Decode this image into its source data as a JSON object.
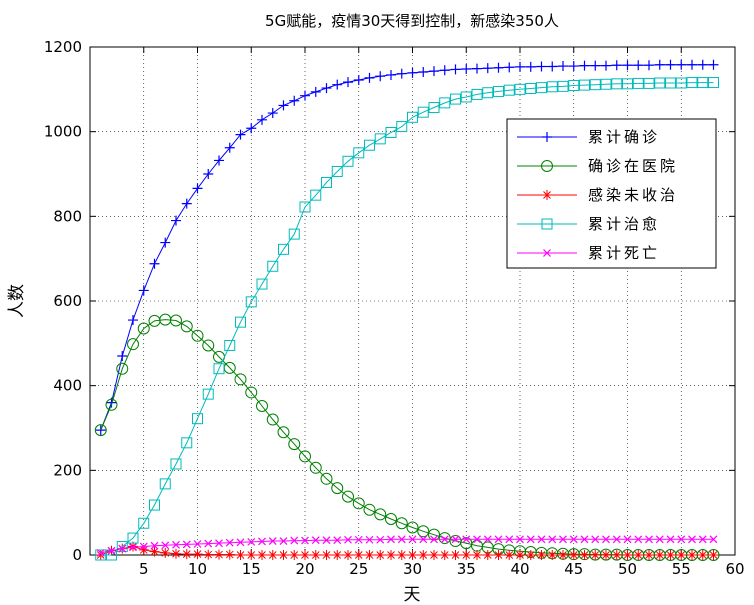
{
  "chart_data": {
    "type": "line",
    "title": "5G赋能，疫情30天得到控制，新感染350人",
    "xlabel": "天",
    "ylabel": "人数",
    "xlim": [
      0,
      60
    ],
    "ylim": [
      0,
      1200
    ],
    "xticks": [
      5,
      10,
      15,
      20,
      25,
      30,
      35,
      40,
      45,
      50,
      55,
      60
    ],
    "yticks": [
      0,
      200,
      400,
      600,
      800,
      1000,
      1200
    ],
    "grid": true,
    "legend_position": "right",
    "x": [
      1,
      2,
      3,
      4,
      5,
      6,
      7,
      8,
      9,
      10,
      11,
      12,
      13,
      14,
      15,
      16,
      17,
      18,
      19,
      20,
      21,
      22,
      23,
      24,
      25,
      26,
      27,
      28,
      29,
      30,
      31,
      32,
      33,
      34,
      35,
      36,
      37,
      38,
      39,
      40,
      41,
      42,
      43,
      44,
      45,
      46,
      47,
      48,
      49,
      50,
      51,
      52,
      53,
      54,
      55,
      56,
      57,
      58
    ],
    "series": [
      {
        "name": "累计确诊",
        "color": "#0000ff",
        "marker": "plus",
        "values": [
          295,
          360,
          470,
          555,
          625,
          688,
          738,
          790,
          830,
          866,
          900,
          932,
          962,
          993,
          1008,
          1028,
          1044,
          1062,
          1073,
          1085,
          1094,
          1103,
          1111,
          1117,
          1122,
          1127,
          1131,
          1134,
          1137,
          1139,
          1141,
          1143,
          1145,
          1147,
          1148,
          1149,
          1150,
          1151,
          1152,
          1153,
          1153,
          1154,
          1154,
          1155,
          1155,
          1156,
          1156,
          1156,
          1157,
          1157,
          1157,
          1157,
          1158,
          1158,
          1158,
          1158,
          1158,
          1158
        ]
      },
      {
        "name": "确诊在医院",
        "color": "#008000",
        "marker": "circle",
        "values": [
          295,
          355,
          440,
          498,
          535,
          553,
          556,
          554,
          540,
          518,
          495,
          468,
          442,
          415,
          384,
          352,
          320,
          290,
          262,
          233,
          206,
          180,
          158,
          138,
          122,
          107,
          96,
          85,
          75,
          65,
          56,
          48,
          40,
          33,
          28,
          22,
          18,
          14,
          11,
          9,
          7,
          5,
          4,
          3,
          2,
          2,
          1,
          1,
          1,
          0,
          0,
          0,
          0,
          0,
          0,
          0,
          0,
          0
        ]
      },
      {
        "name": "感染未收治",
        "color": "#ff0000",
        "marker": "star",
        "values": [
          0,
          10,
          15,
          20,
          12,
          8,
          5,
          3,
          2,
          2,
          1,
          1,
          1,
          0,
          0,
          0,
          0,
          0,
          0,
          0,
          0,
          0,
          0,
          0,
          0,
          0,
          0,
          0,
          0,
          0,
          0,
          0,
          0,
          0,
          0,
          0,
          0,
          0,
          0,
          0,
          0,
          0,
          0,
          0,
          0,
          0,
          0,
          0,
          0,
          0,
          0,
          0,
          0,
          0,
          0,
          0,
          0,
          0
        ]
      },
      {
        "name": "累计治愈",
        "color": "#00bbbb",
        "marker": "square",
        "values": [
          0,
          0,
          20,
          40,
          75,
          118,
          168,
          215,
          265,
          322,
          380,
          440,
          495,
          550,
          598,
          640,
          682,
          722,
          758,
          822,
          850,
          880,
          906,
          930,
          950,
          968,
          983,
          998,
          1012,
          1034,
          1046,
          1057,
          1068,
          1077,
          1082,
          1088,
          1092,
          1095,
          1098,
          1100,
          1102,
          1104,
          1106,
          1107,
          1109,
          1110,
          1111,
          1112,
          1113,
          1113,
          1114,
          1114,
          1115,
          1115,
          1115,
          1116,
          1116,
          1116
        ]
      },
      {
        "name": "累计死亡",
        "color": "#ff00ff",
        "marker": "x",
        "values": [
          5,
          10,
          15,
          18,
          20,
          22,
          23,
          24,
          25,
          26,
          27,
          28,
          29,
          30,
          31,
          32,
          33,
          33,
          34,
          34,
          35,
          35,
          35,
          36,
          36,
          36,
          36,
          37,
          37,
          37,
          37,
          37,
          37,
          37,
          37,
          37,
          37,
          37,
          37,
          37,
          37,
          37,
          37,
          37,
          37,
          37,
          37,
          37,
          37,
          37,
          37,
          37,
          37,
          37,
          37,
          37,
          37,
          37
        ]
      }
    ]
  }
}
